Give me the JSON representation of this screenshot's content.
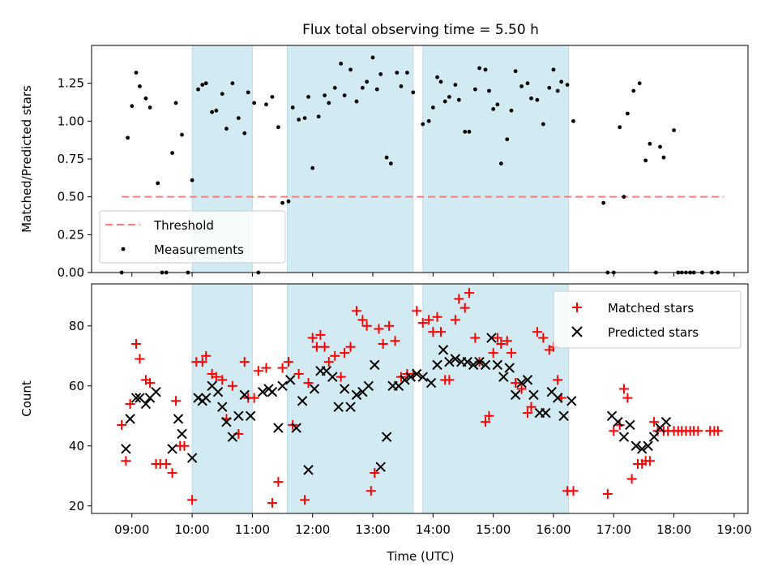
{
  "chart_data": [
    {
      "type": "scatter",
      "title": "Flux total observing time = 5.50 h",
      "xlabel": "",
      "ylabel": "Matched/Predicted stars",
      "xlim": [
        8.33,
        19.23
      ],
      "ylim": [
        0,
        1.5
      ],
      "yticks": [
        0.0,
        0.25,
        0.5,
        0.75,
        1.0,
        1.25
      ],
      "yticklabels": [
        "0.00",
        "0.25",
        "0.50",
        "0.75",
        "1.00",
        "1.25"
      ],
      "shaded_intervals": [
        [
          10.0,
          11.0
        ],
        [
          11.58,
          13.67
        ],
        [
          13.83,
          16.25
        ]
      ],
      "threshold": {
        "name": "Threshold",
        "value": 0.5,
        "x": [
          8.83,
          18.83
        ],
        "color": "#f08080"
      },
      "legend_position": "lower-left",
      "series": [
        {
          "name": "Measurements",
          "color": "#000000",
          "x": [
            8.83,
            8.93,
            9.0,
            9.07,
            9.13,
            9.23,
            9.3,
            9.43,
            9.5,
            9.57,
            9.67,
            9.73,
            9.83,
            9.93,
            10.0,
            10.1,
            10.17,
            10.23,
            10.33,
            10.4,
            10.5,
            10.57,
            10.67,
            10.77,
            10.87,
            10.93,
            11.03,
            11.1,
            11.23,
            11.33,
            11.43,
            11.5,
            11.6,
            11.67,
            11.77,
            11.87,
            11.93,
            12.0,
            12.1,
            12.2,
            12.27,
            12.37,
            12.47,
            12.53,
            12.63,
            12.73,
            12.83,
            12.9,
            13.0,
            13.07,
            13.13,
            13.23,
            13.3,
            13.4,
            13.47,
            13.57,
            13.67,
            13.83,
            13.93,
            14.0,
            14.07,
            14.13,
            14.2,
            14.27,
            14.37,
            14.43,
            14.53,
            14.6,
            14.7,
            14.77,
            14.87,
            14.93,
            15.0,
            15.07,
            15.13,
            15.23,
            15.3,
            15.37,
            15.47,
            15.57,
            15.63,
            15.73,
            15.83,
            15.93,
            16.0,
            16.07,
            16.13,
            16.23,
            16.33,
            16.83,
            16.9,
            17.0,
            17.1,
            17.17,
            17.23,
            17.33,
            17.43,
            17.53,
            17.6,
            17.7,
            17.77,
            17.83,
            18.0,
            18.07,
            18.13,
            18.2,
            18.27,
            18.33,
            18.47,
            18.63,
            18.73
          ],
          "y": [
            0.0,
            0.89,
            1.1,
            1.32,
            1.23,
            1.15,
            1.09,
            0.59,
            0.0,
            0.0,
            0.79,
            1.12,
            0.91,
            0.0,
            0.61,
            1.21,
            1.24,
            1.25,
            1.06,
            1.07,
            1.18,
            0.95,
            1.25,
            1.02,
            0.92,
            1.19,
            1.12,
            0.0,
            1.11,
            1.16,
            0.96,
            0.46,
            0.47,
            1.09,
            1.01,
            1.02,
            1.16,
            0.69,
            1.03,
            1.17,
            1.12,
            1.22,
            1.38,
            1.17,
            1.34,
            1.13,
            1.22,
            1.26,
            1.42,
            1.21,
            1.31,
            0.76,
            0.72,
            1.32,
            1.23,
            1.32,
            1.19,
            0.98,
            1.0,
            1.09,
            1.29,
            1.26,
            1.13,
            1.16,
            1.24,
            1.14,
            0.93,
            0.93,
            1.21,
            1.35,
            1.34,
            1.2,
            1.08,
            1.11,
            0.72,
            0.88,
            1.07,
            1.33,
            1.23,
            1.25,
            1.15,
            1.14,
            0.98,
            1.22,
            1.34,
            1.2,
            1.26,
            1.24,
            1.0,
            0.46,
            0.0,
            0.0,
            0.96,
            0.5,
            1.05,
            1.2,
            1.25,
            0.74,
            0.85,
            0.0,
            0.83,
            0.76,
            0.94,
            0.0,
            0.0,
            0.0,
            0.0,
            0.0,
            0.0,
            0.0,
            0.0
          ]
        }
      ]
    },
    {
      "type": "scatter",
      "title": "",
      "xlabel": "Time (UTC)",
      "ylabel": "Count",
      "xlim": [
        8.33,
        19.23
      ],
      "ylim": [
        17.5,
        94
      ],
      "xticks": [
        9,
        10,
        11,
        12,
        13,
        14,
        15,
        16,
        17,
        18,
        19
      ],
      "xticklabels": [
        "09:00",
        "10:00",
        "11:00",
        "12:00",
        "13:00",
        "14:00",
        "15:00",
        "16:00",
        "17:00",
        "18:00",
        "19:00"
      ],
      "yticks": [
        20,
        40,
        60,
        80
      ],
      "yticklabels": [
        "20",
        "40",
        "60",
        "80"
      ],
      "shaded_intervals": [
        [
          10.0,
          11.0
        ],
        [
          11.58,
          13.67
        ],
        [
          13.83,
          16.25
        ]
      ],
      "legend_position": "upper-right",
      "series": [
        {
          "name": "Matched stars",
          "marker": "+",
          "color": "#ff0000",
          "x": [
            8.83,
            8.9,
            8.97,
            9.07,
            9.13,
            9.23,
            9.3,
            9.4,
            9.47,
            9.57,
            9.67,
            9.73,
            9.8,
            9.87,
            10.0,
            10.07,
            10.17,
            10.23,
            10.33,
            10.4,
            10.5,
            10.57,
            10.67,
            10.77,
            10.87,
            10.93,
            11.03,
            11.1,
            11.23,
            11.33,
            11.43,
            11.5,
            11.6,
            11.67,
            11.77,
            11.87,
            11.93,
            12.0,
            12.07,
            12.13,
            12.2,
            12.27,
            12.37,
            12.47,
            12.53,
            12.63,
            12.73,
            12.83,
            12.9,
            12.97,
            13.03,
            13.1,
            13.17,
            13.27,
            13.37,
            13.47,
            13.57,
            13.67,
            13.73,
            13.83,
            13.93,
            14.0,
            14.07,
            14.13,
            14.2,
            14.27,
            14.37,
            14.43,
            14.53,
            14.6,
            14.7,
            14.77,
            14.87,
            14.93,
            15.0,
            15.07,
            15.13,
            15.23,
            15.3,
            15.37,
            15.47,
            15.57,
            15.63,
            15.73,
            15.83,
            15.93,
            16.0,
            16.07,
            16.13,
            16.23,
            16.33,
            16.9,
            17.0,
            17.1,
            17.17,
            17.23,
            17.3,
            17.4,
            17.47,
            17.53,
            17.6,
            17.67,
            17.73,
            17.83,
            17.9,
            18.0,
            18.07,
            18.13,
            18.2,
            18.27,
            18.33,
            18.4,
            18.6,
            18.67,
            18.73
          ],
          "y": [
            47,
            35,
            54,
            74,
            69,
            62,
            61,
            34,
            34,
            34,
            31,
            55,
            40,
            40,
            22,
            68,
            68,
            70,
            64,
            63,
            62,
            49,
            60,
            44,
            68,
            56,
            56,
            65,
            66,
            21,
            28,
            66,
            68,
            47,
            64,
            22,
            61,
            76,
            73,
            77,
            73,
            68,
            70,
            63,
            71,
            73,
            85,
            82,
            80,
            25,
            31,
            79,
            74,
            80,
            75,
            63,
            64,
            64,
            85,
            81,
            82,
            78,
            83,
            78,
            62,
            62,
            82,
            89,
            86,
            91,
            76,
            68,
            48,
            50,
            71,
            76,
            74,
            75,
            71,
            61,
            59,
            51,
            53,
            78,
            76,
            72,
            73,
            62,
            56,
            25,
            25,
            24,
            45,
            47,
            59,
            56,
            29,
            34,
            34,
            35,
            35,
            48,
            45,
            45,
            45,
            45,
            45,
            45,
            45,
            45,
            45,
            45,
            45,
            45,
            45
          ]
        },
        {
          "name": "Predicted stars",
          "marker": "x",
          "color": "#000000",
          "x": [
            8.9,
            8.97,
            9.07,
            9.13,
            9.23,
            9.3,
            9.4,
            9.67,
            9.77,
            9.83,
            10.0,
            10.1,
            10.17,
            10.23,
            10.33,
            10.43,
            10.5,
            10.57,
            10.67,
            10.77,
            10.87,
            10.97,
            11.17,
            11.27,
            11.33,
            11.43,
            11.5,
            11.63,
            11.73,
            11.83,
            11.93,
            12.03,
            12.13,
            12.23,
            12.33,
            12.43,
            12.53,
            12.63,
            12.73,
            12.83,
            12.93,
            13.03,
            13.13,
            13.23,
            13.33,
            13.43,
            13.53,
            13.63,
            13.73,
            13.83,
            13.97,
            14.07,
            14.17,
            14.27,
            14.37,
            14.47,
            14.57,
            14.67,
            14.77,
            14.87,
            14.97,
            15.07,
            15.17,
            15.27,
            15.37,
            15.47,
            15.57,
            15.67,
            15.77,
            15.87,
            15.97,
            16.07,
            16.17,
            16.3,
            16.97,
            17.07,
            17.17,
            17.27,
            17.37,
            17.47,
            17.57,
            17.67,
            17.77,
            17.87
          ],
          "y": [
            39,
            49,
            56,
            56,
            54,
            56,
            58,
            39,
            49,
            44,
            36,
            56,
            55,
            56,
            60,
            58,
            53,
            48,
            43,
            50,
            57,
            50,
            58,
            59,
            58,
            46,
            60,
            62,
            46,
            55,
            32,
            59,
            65,
            65,
            63,
            53,
            59,
            53,
            57,
            58,
            60,
            67,
            33,
            43,
            60,
            60,
            62,
            63,
            64,
            63,
            61,
            67,
            72,
            68,
            69,
            68,
            68,
            67,
            68,
            67,
            76,
            67,
            63,
            66,
            57,
            61,
            62,
            57,
            51,
            51,
            58,
            56,
            50,
            55,
            50,
            48,
            43,
            47,
            40,
            39,
            40,
            43,
            46,
            48
          ]
        }
      ]
    }
  ]
}
